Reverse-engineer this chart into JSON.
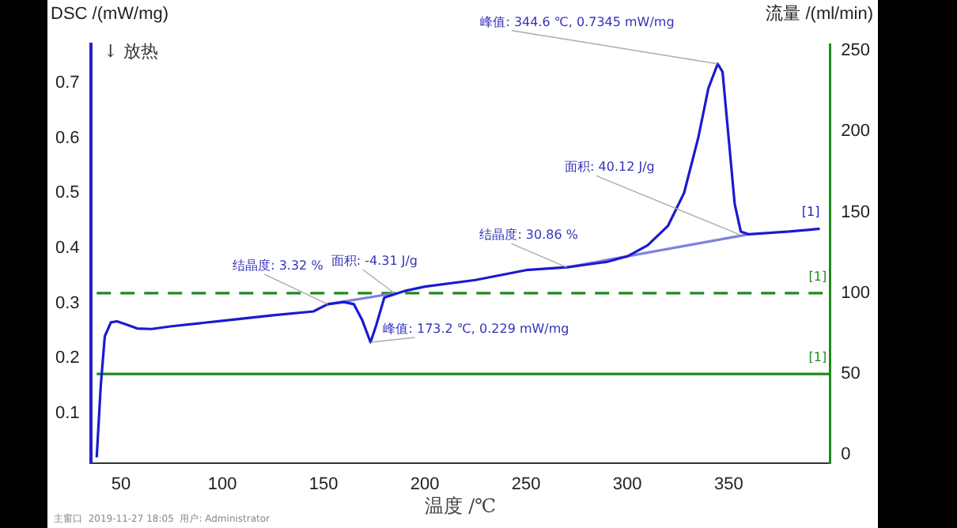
{
  "chart_data": {
    "type": "line",
    "xlabel": "温度 /℃",
    "ylabel": "DSC /(mW/mg)",
    "y2label": "流量 /(ml/min)",
    "xlim": [
      35,
      400
    ],
    "xticks": [
      50,
      100,
      150,
      200,
      250,
      300,
      350
    ],
    "ylim": [
      0.01,
      0.77
    ],
    "yticks": [
      0.1,
      0.2,
      0.3,
      0.4,
      0.5,
      0.6,
      0.7
    ],
    "y2lim": [
      -5,
      254
    ],
    "y2ticks": [
      0,
      50,
      100,
      150,
      200,
      250
    ],
    "grid": false,
    "legend": false,
    "marker": "none",
    "line_style": "solid",
    "series": [
      {
        "name": "[1]",
        "color": "#1a1ad0",
        "x": [
          38,
          40,
          42,
          45,
          48,
          52,
          58,
          65,
          75,
          100,
          125,
          145,
          152,
          160,
          165,
          169,
          173.2,
          176,
          180,
          190,
          200,
          225,
          250,
          270,
          290,
          300,
          310,
          320,
          328,
          335,
          340,
          344.6,
          347,
          350,
          353,
          356,
          360,
          380,
          395
        ],
        "values": [
          0.02,
          0.15,
          0.24,
          0.265,
          0.267,
          0.262,
          0.254,
          0.253,
          0.258,
          0.268,
          0.278,
          0.285,
          0.298,
          0.302,
          0.298,
          0.27,
          0.229,
          0.26,
          0.31,
          0.322,
          0.33,
          0.342,
          0.36,
          0.365,
          0.375,
          0.385,
          0.405,
          0.44,
          0.5,
          0.6,
          0.69,
          0.7345,
          0.72,
          0.6,
          0.48,
          0.43,
          0.425,
          0.43,
          0.435
        ]
      },
      {
        "color": "#8080e0",
        "x": [
          152,
          185
        ],
        "values": [
          0.298,
          0.318
        ]
      },
      {
        "color": "#8080e0",
        "x": [
          270,
          360
        ],
        "values": [
          0.365,
          0.425
        ]
      },
      {
        "name": "[1]",
        "color": "#1e8a1e",
        "axis": "y2",
        "line_style": "dashed",
        "x": [
          38,
          400
        ],
        "values": [
          100,
          100
        ]
      },
      {
        "name": "[1]",
        "color": "#1e8a1e",
        "axis": "y2",
        "x": [
          38,
          400
        ],
        "values": [
          50,
          50
        ]
      }
    ],
    "annotations": [
      "↓ 放热",
      {
        "text": "结晶度: 3.32 %",
        "x": 152,
        "y": 0.298
      },
      {
        "text": "面积: -4.31 J/g",
        "x": 185,
        "y": 0.318
      },
      {
        "text": "峰值: 173.2 ℃, 0.229 mW/mg",
        "x": 173.2,
        "y": 0.229
      },
      {
        "text": "结晶度: 30.86 %",
        "x": 270,
        "y": 0.365
      },
      {
        "text": "面积: 40.12 J/g",
        "x": 355,
        "y": 0.425
      },
      {
        "text": "峰值: 344.6 ℃, 0.7345 mW/mg",
        "x": 344.6,
        "y": 0.7345
      },
      "主窗口  2019-11-27 18:05  用户: Administrator"
    ]
  }
}
